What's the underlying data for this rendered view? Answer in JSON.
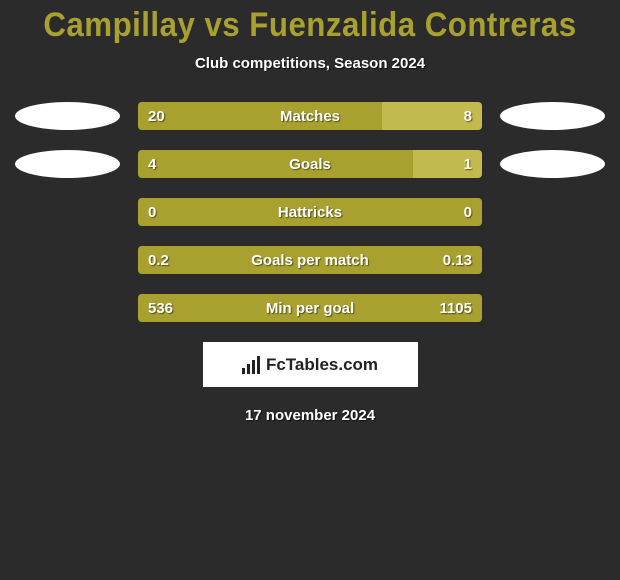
{
  "title": "Campillay vs Fuenzalida Contreras",
  "subtitle": "Club competitions, Season 2024",
  "footer_logo_text": "FcTables.com",
  "footer_date": "17 november 2024",
  "colors": {
    "background": "#2b2b2b",
    "accent": "#a8a02f",
    "bar_dark": "#a8a02f",
    "bar_light": "#c2ba4e",
    "text": "#ffffff"
  },
  "stats": [
    {
      "label": "Matches",
      "left_value": "20",
      "right_value": "8",
      "left_pct": 71,
      "show_ellipses": true
    },
    {
      "label": "Goals",
      "left_value": "4",
      "right_value": "1",
      "left_pct": 80,
      "show_ellipses": true
    },
    {
      "label": "Hattricks",
      "left_value": "0",
      "right_value": "0",
      "left_pct": 100,
      "show_ellipses": false
    },
    {
      "label": "Goals per match",
      "left_value": "0.2",
      "right_value": "0.13",
      "left_pct": 100,
      "show_ellipses": false
    },
    {
      "label": "Min per goal",
      "left_value": "536",
      "right_value": "1105",
      "left_pct": 100,
      "show_ellipses": false
    }
  ]
}
